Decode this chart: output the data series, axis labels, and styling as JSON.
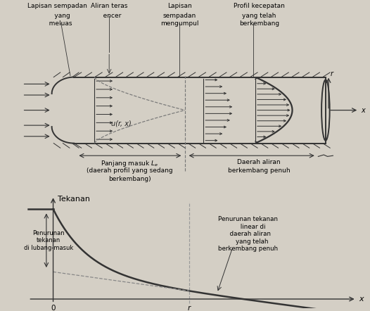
{
  "bg_color": "#d4cfc5",
  "pipe_color": "#333333",
  "labels": {
    "lapisan_sempadan_atas": "Lapisan sempadan\n      yang\n    meluas",
    "aliran_teras": "Aliran teras\n   encer",
    "lapisan_sempadan_mengumpul": "Lapisan\nsempadan\nmengumpul",
    "profil_kecepatan": "Profil kecepatan\n yang telah\n berkembang",
    "panjang_masuk": "Panjang masuk $L_e$\n(daerah profil yang sedang\n       berkembang)",
    "daerah_aliran": "Daerah aliran\nberkembang penuh",
    "tekanan": "Tekanan",
    "penurunan_tekanan": "Penurunan\ntekanan\ndi lubang-masuk",
    "penurunan_tekanan2": "Penurunan tekanan\n     linear di\n  daerah aliran\n    yang telah\nberkembang penuh",
    "u_r_x": "u(r, x)",
    "r_label": "r",
    "x_label": "x",
    "r_tick": "r",
    "zero_tick": "0"
  }
}
